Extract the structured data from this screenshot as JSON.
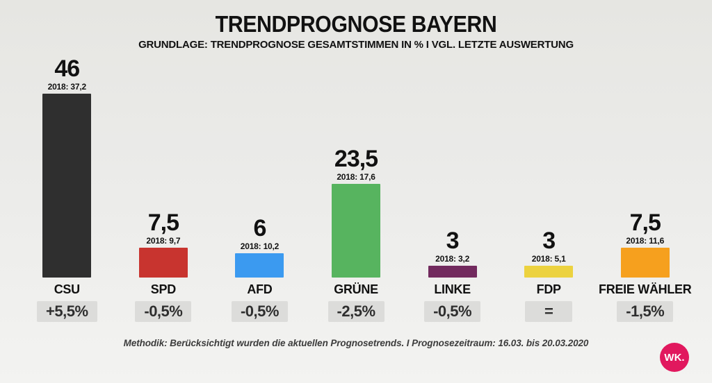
{
  "header": {
    "title": "TRENDPROGNOSE BAYERN",
    "subtitle": "GRUNDLAGE: TRENDPROGNOSE GESAMTSTIMMEN IN % I VGL. LETZTE AUSWERTUNG"
  },
  "chart_data": {
    "type": "bar",
    "title": "TRENDPROGNOSE BAYERN",
    "subtitle": "GRUNDLAGE: TRENDPROGNOSE GESAMTSTIMMEN IN % I VGL. LETZTE AUSWERTUNG",
    "categories": [
      "CSU",
      "SPD",
      "AFD",
      "GRÜNE",
      "LINKE",
      "FDP",
      "FREIE WÄHLER"
    ],
    "values": [
      46,
      7.5,
      6,
      23.5,
      3,
      3,
      7.5
    ],
    "value_labels": [
      "46",
      "7,5",
      "6",
      "23,5",
      "3",
      "3",
      "7,5"
    ],
    "previous_year": "2018",
    "previous_values": [
      37.2,
      9.7,
      10.2,
      17.6,
      3.2,
      5.1,
      11.6
    ],
    "previous_labels": [
      "2018: 37,2",
      "2018: 9,7",
      "2018: 10,2",
      "2018: 17,6",
      "2018: 3,2",
      "2018: 5,1",
      "2018: 11,6"
    ],
    "change_labels": [
      "+5,5%",
      "-0,5%",
      "-0,5%",
      "-2,5%",
      "-0,5%",
      "=",
      "-1,5%"
    ],
    "bar_colors": [
      "#2f2f2f",
      "#c8342f",
      "#3b9af0",
      "#57b45f",
      "#722a5e",
      "#ecd23f",
      "#f6a01e"
    ],
    "ylabel": "Gesamtstimmen in %",
    "ylim": [
      0,
      50
    ],
    "grid": false,
    "legend": false
  },
  "footer": {
    "methodology": "Methodik: Berücksichtigt wurden die aktuellen Prognosetrends. I Prognosezeitraum: 16.03. bis 20.03.2020"
  },
  "logo": {
    "text": "WK.",
    "background_color": "#e1185e"
  }
}
